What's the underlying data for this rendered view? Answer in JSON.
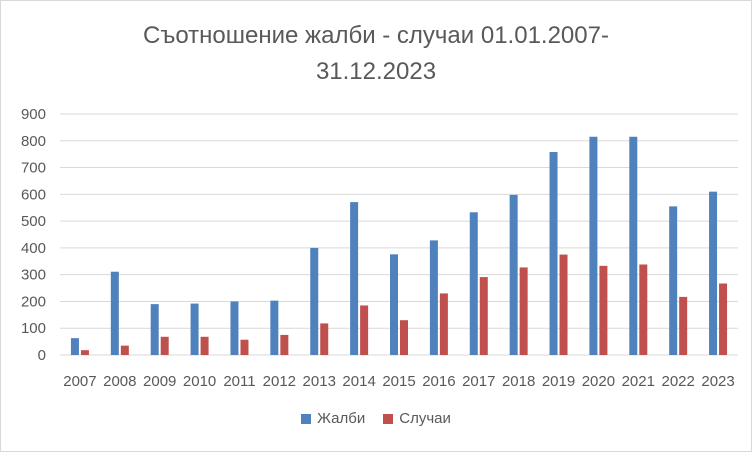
{
  "chart_data": {
    "type": "bar",
    "title": "Съотношение жалби - случаи 01.01.2007-31.12.2023",
    "title_lines": [
      "Съотношение жалби - случаи 01.01.2007-",
      "31.12.2023"
    ],
    "categories": [
      "2007",
      "2008",
      "2009",
      "2010",
      "2011",
      "2012",
      "2013",
      "2014",
      "2015",
      "2016",
      "2017",
      "2018",
      "2019",
      "2020",
      "2021",
      "2022",
      "2023"
    ],
    "series": [
      {
        "name": "Жалби",
        "color": "#4f81bd",
        "values": [
          63,
          311,
          190,
          192,
          200,
          203,
          400,
          571,
          376,
          428,
          533,
          598,
          758,
          815,
          815,
          555,
          610
        ]
      },
      {
        "name": "Случаи",
        "color": "#c0504d",
        "values": [
          18,
          35,
          68,
          68,
          57,
          75,
          118,
          185,
          130,
          230,
          291,
          327,
          375,
          333,
          338,
          217,
          267
        ]
      }
    ],
    "xlabel": "",
    "ylabel": "",
    "ylim": [
      0,
      900
    ],
    "yticks": [
      "0",
      "100",
      "200",
      "300",
      "400",
      "500",
      "600",
      "700",
      "800",
      "900"
    ],
    "grid": true,
    "legend": "bottom"
  }
}
